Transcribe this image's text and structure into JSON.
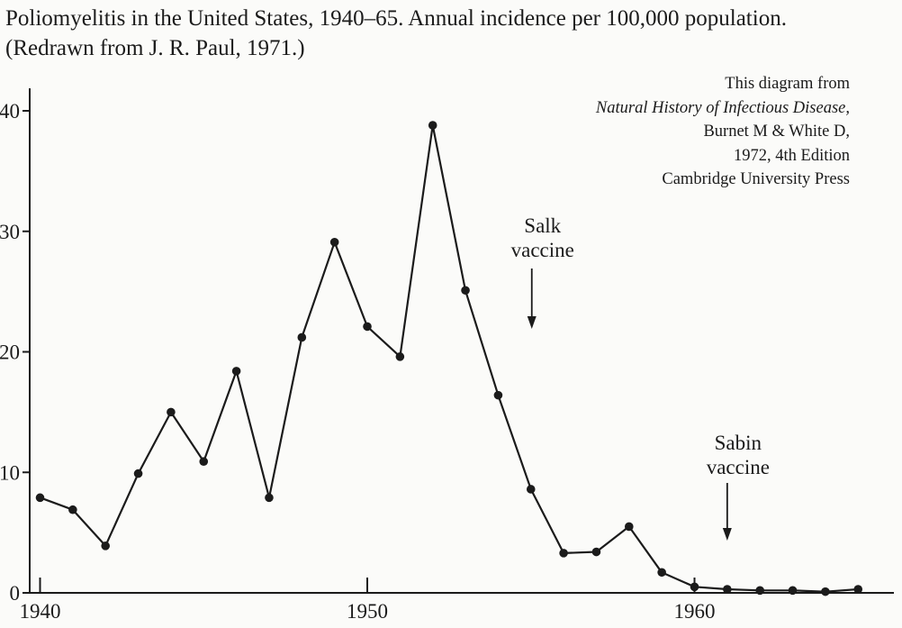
{
  "caption": "Poliomyelitis in the United States, 1940–65. Annual incidence per 100,000 population. (Redrawn from J. R. Paul, 1971.)",
  "credit": {
    "line1": "This diagram from",
    "line2": "Natural History of Infectious Disease,",
    "line3": "Burnet M & White D,",
    "line4": "1972, 4th Edition",
    "line5": "Cambridge University Press"
  },
  "chart_data": {
    "type": "line",
    "title": "",
    "xlabel": "",
    "ylabel": "",
    "x_ticks": [
      1940,
      1950,
      1960
    ],
    "y_ticks": [
      0,
      10,
      20,
      30,
      40
    ],
    "y_tick_labels": [
      "0",
      "10",
      "20",
      "30",
      "40"
    ],
    "x_tick_labels": [
      "1940",
      "1950",
      "1960"
    ],
    "xlim": [
      1940,
      1966
    ],
    "ylim": [
      0,
      40
    ],
    "grid": false,
    "legend": "none",
    "series": [
      {
        "x": [
          1940,
          1941,
          1942,
          1943,
          1944,
          1945,
          1946,
          1947,
          1948,
          1949,
          1950,
          1951,
          1952,
          1953,
          1954,
          1955,
          1956,
          1957,
          1958,
          1959,
          1960,
          1961,
          1962,
          1963,
          1964,
          1965
        ],
        "y": [
          7.9,
          6.9,
          3.9,
          9.9,
          15.0,
          10.9,
          18.4,
          7.9,
          21.2,
          29.1,
          22.1,
          19.6,
          38.8,
          25.1,
          16.4,
          8.6,
          3.3,
          3.4,
          5.5,
          1.7,
          0.5,
          0.3,
          0.2,
          0.2,
          0.1,
          0.3
        ]
      }
    ],
    "annotations": [
      {
        "text_lines": [
          "Salk",
          "vaccine"
        ],
        "x": 1955
      },
      {
        "text_lines": [
          "Sabin",
          "vaccine"
        ],
        "x": 1961
      }
    ],
    "colors": {
      "ink": "#1b1b1b",
      "paper": "#fbfbf9"
    }
  }
}
